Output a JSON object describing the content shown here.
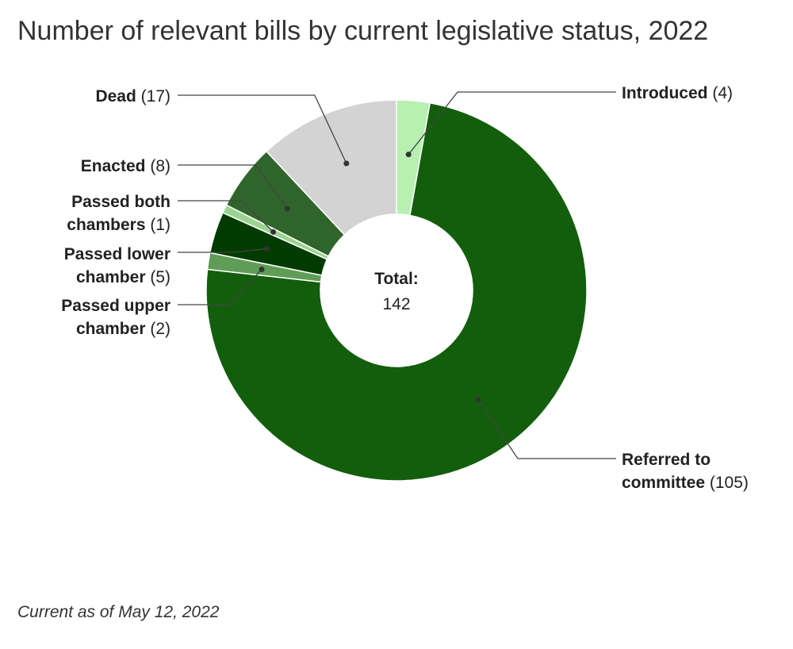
{
  "chart_data": {
    "type": "pie",
    "variant": "donut",
    "title": "Number of relevant bills by current legislative status, 2022",
    "center_label": "Total:",
    "total": 142,
    "slices": [
      {
        "key": "introduced",
        "label_lines": [
          "Introduced"
        ],
        "value": 4,
        "value_text": "(4)",
        "color": "#b7f0b1"
      },
      {
        "key": "referred",
        "label_lines": [
          "Referred to",
          "committee"
        ],
        "value": 105,
        "value_text": "(105)",
        "color": "#135e0d"
      },
      {
        "key": "passed-upper",
        "label_lines": [
          "Passed upper",
          "chamber"
        ],
        "value": 2,
        "value_text": "(2)",
        "color": "#5f9d57"
      },
      {
        "key": "passed-lower",
        "label_lines": [
          "Passed lower",
          "chamber"
        ],
        "value": 5,
        "value_text": "(5)",
        "color": "#013b00"
      },
      {
        "key": "passed-both",
        "label_lines": [
          "Passed both",
          "chambers"
        ],
        "value": 1,
        "value_text": "(1)",
        "color": "#9ad48f"
      },
      {
        "key": "enacted",
        "label_lines": [
          "Enacted"
        ],
        "value": 8,
        "value_text": "(8)",
        "color": "#2f652a"
      },
      {
        "key": "dead",
        "label_lines": [
          "Dead"
        ],
        "value": 17,
        "value_text": "(17)",
        "color": "#d3d3d3"
      }
    ],
    "footnote": "Current as of May 12, 2022"
  }
}
